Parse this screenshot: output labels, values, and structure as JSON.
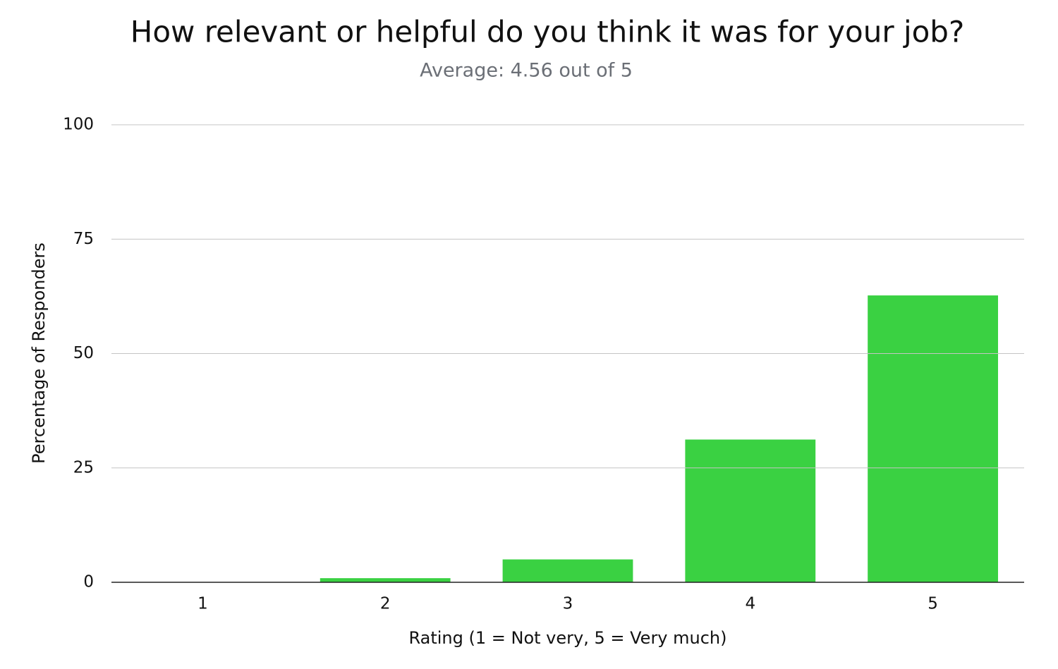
{
  "chart_data": {
    "type": "bar",
    "title": "How relevant or helpful do you think it was for your job?",
    "subtitle": "Average: 4.56 out of 5",
    "x_label": "Rating (1 = Not very, 5 = Very much)",
    "y_label": "Percentage of Responders",
    "categories": [
      "1",
      "2",
      "3",
      "4",
      "5"
    ],
    "values": [
      0,
      0.9,
      5,
      31.2,
      62.7
    ],
    "color": "#3ad142",
    "ylim": [
      0,
      100
    ],
    "yticks": [
      0,
      25,
      50,
      75,
      100
    ],
    "grid": true
  }
}
